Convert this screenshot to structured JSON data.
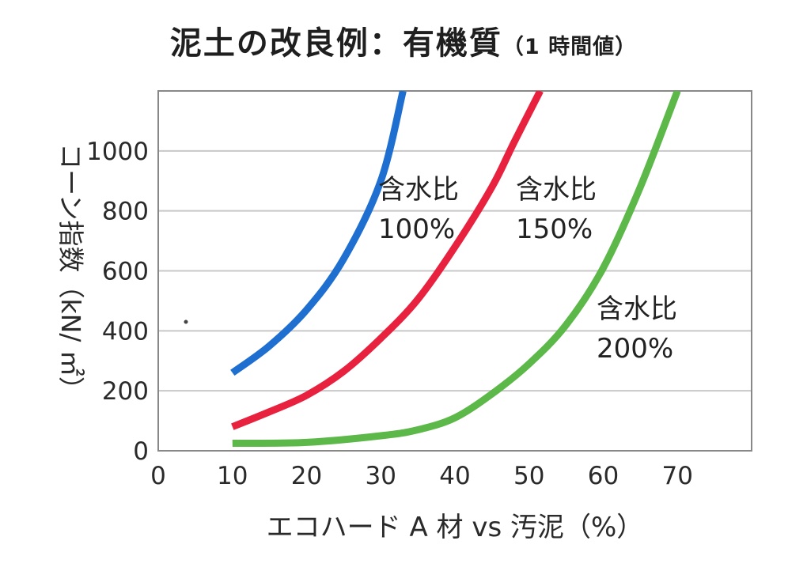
{
  "title": "泥土の改良例：有機質",
  "subtitle": "（1 時間値）",
  "chart_data": {
    "type": "line",
    "title": "泥土の改良例：有機質（1 時間値）",
    "xlabel": "エコハード A 材 vs 汚泥（%）",
    "ylabel": "コーン指数（kN/ ㎡）",
    "xlim": [
      0,
      80
    ],
    "ylim": [
      0,
      1200
    ],
    "x_ticks": [
      "0",
      "10",
      "20",
      "30",
      "40",
      "50",
      "60",
      "70"
    ],
    "y_ticks": [
      "0",
      "200",
      "400",
      "600",
      "800",
      "1000"
    ],
    "grid": true,
    "series": [
      {
        "name": "含水比 100%",
        "label_line1": "含水比",
        "label_line2": "100%",
        "color": "#1f6fd1",
        "x": [
          10,
          15,
          20,
          25,
          30,
          33
        ],
        "y": [
          260,
          350,
          470,
          640,
          900,
          1200
        ]
      },
      {
        "name": "含水比 150%",
        "label_line1": "含水比",
        "label_line2": "150%",
        "color": "#e8213f",
        "x": [
          10,
          15,
          20,
          25,
          30,
          35,
          40,
          45,
          48,
          51.5
        ],
        "y": [
          80,
          130,
          185,
          265,
          375,
          505,
          680,
          880,
          1030,
          1200
        ]
      },
      {
        "name": "含水比 200%",
        "label_line1": "含水比",
        "label_line2": "200%",
        "color": "#5cb848",
        "x": [
          10,
          20,
          30,
          35,
          40,
          45,
          50,
          55,
          60,
          65,
          70
        ],
        "y": [
          25,
          28,
          50,
          70,
          110,
          190,
          290,
          420,
          610,
          880,
          1200
        ]
      }
    ]
  }
}
